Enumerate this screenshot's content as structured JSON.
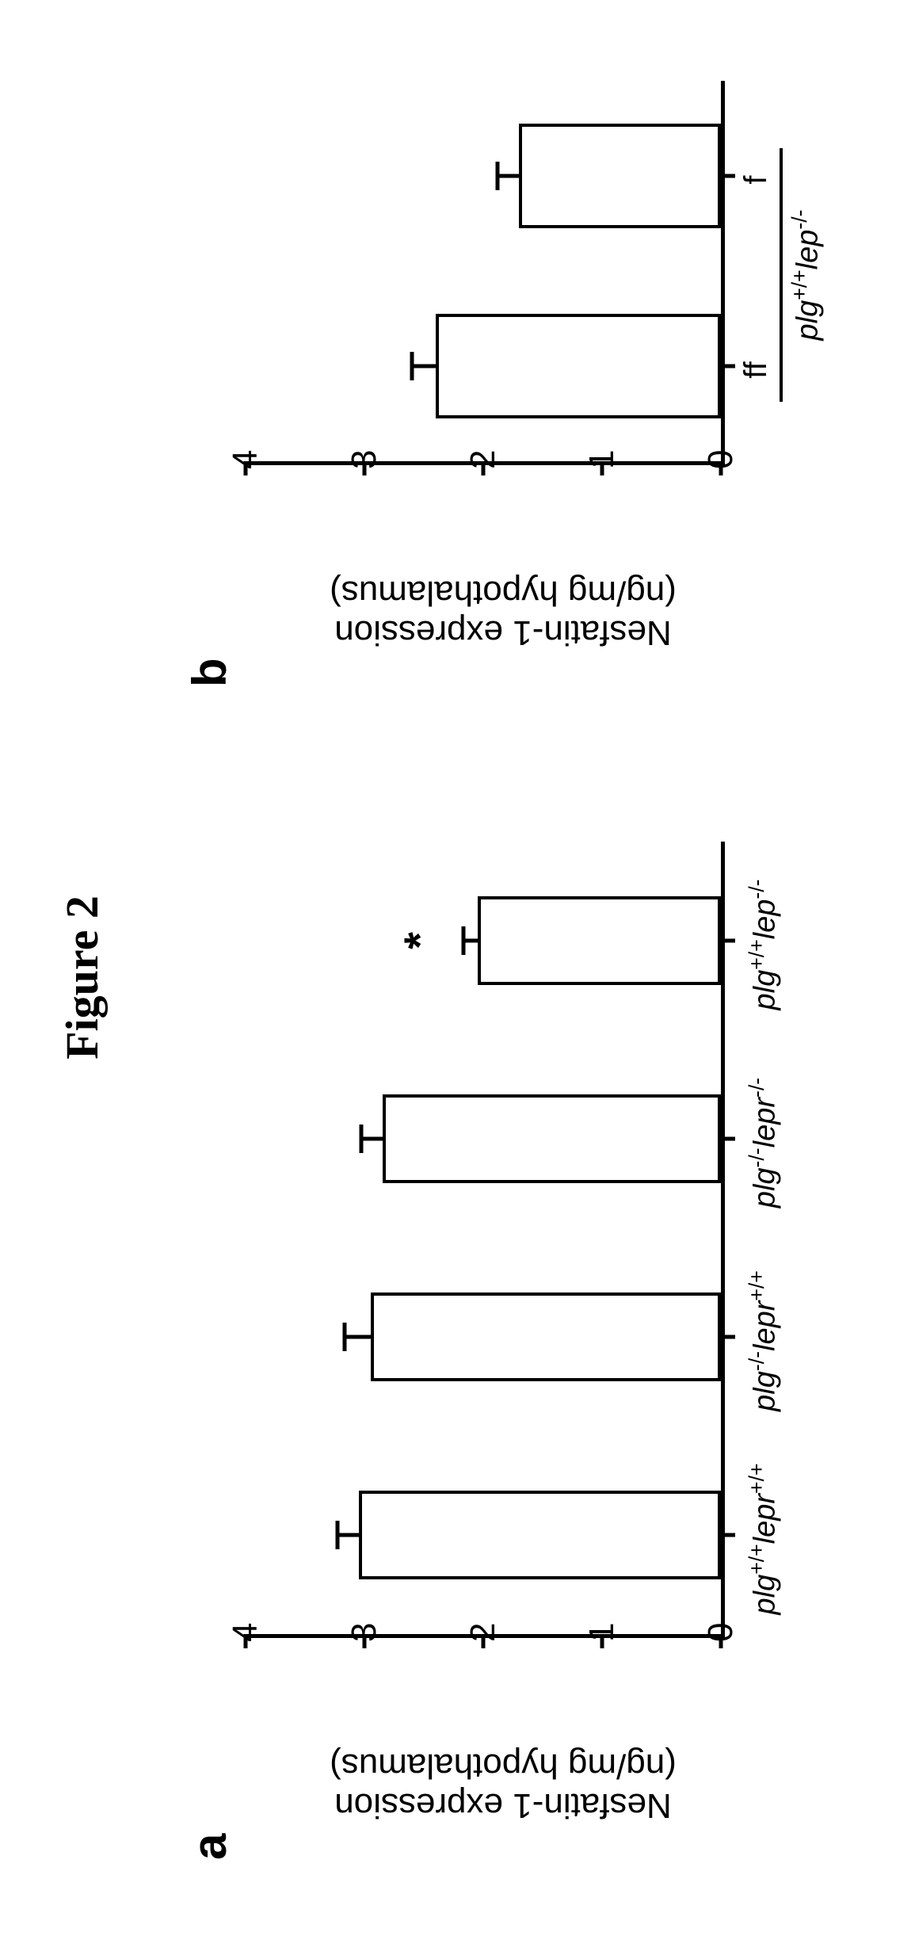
{
  "figure_title": "Figure 2",
  "background_color": "#ffffff",
  "axis_color": "#000000",
  "bar_fill": "#ffffff",
  "bar_stroke": "#000000",
  "panel_a": {
    "label": "a",
    "type": "bar",
    "y_title_line1": "Nesfatin-1 expression",
    "y_title_line2": "(ng/mg hypothalamus)",
    "ylim": [
      0,
      4
    ],
    "ytick_step": 1,
    "yticks": [
      0,
      1,
      2,
      3,
      4
    ],
    "axis_fontsize": 44,
    "label_fontsize": 38,
    "bar_width": 0.45,
    "categories_html": [
      "<i>plg</i><sup>+/+</sup><i>lepr</i><sup>+/+</sup>",
      "<i>plg</i><sup>-/-</sup><i>lepr</i><sup>+/+</sup>",
      "<i>plg</i><sup>-/-</sup><i>lepr</i><sup>-/-</sup>",
      "<i>plg</i><sup>+/+</sup><i>lep</i><sup>-/-</sup>"
    ],
    "values": [
      3.05,
      2.95,
      2.85,
      2.05
    ],
    "errors": [
      0.18,
      0.22,
      0.18,
      0.12
    ],
    "significance": {
      "bar_index": 3,
      "marker": "*",
      "offset_above_error": 0.15
    }
  },
  "panel_b": {
    "label": "b",
    "type": "bar",
    "y_title_line1": "Nesfatin-1 expression",
    "y_title_line2": "(ng/mg hypothalamus)",
    "ylim": [
      0,
      4
    ],
    "ytick_step": 1,
    "yticks": [
      0,
      1,
      2,
      3,
      4
    ],
    "axis_fontsize": 44,
    "label_fontsize": 38,
    "bar_width": 0.55,
    "group_labels": [
      "ff",
      "f"
    ],
    "values": [
      2.4,
      1.7
    ],
    "errors": [
      0.2,
      0.18
    ],
    "genotype_html": "<i>plg</i><sup>+/+</sup><i>lep</i><sup>-/-</sup>"
  }
}
